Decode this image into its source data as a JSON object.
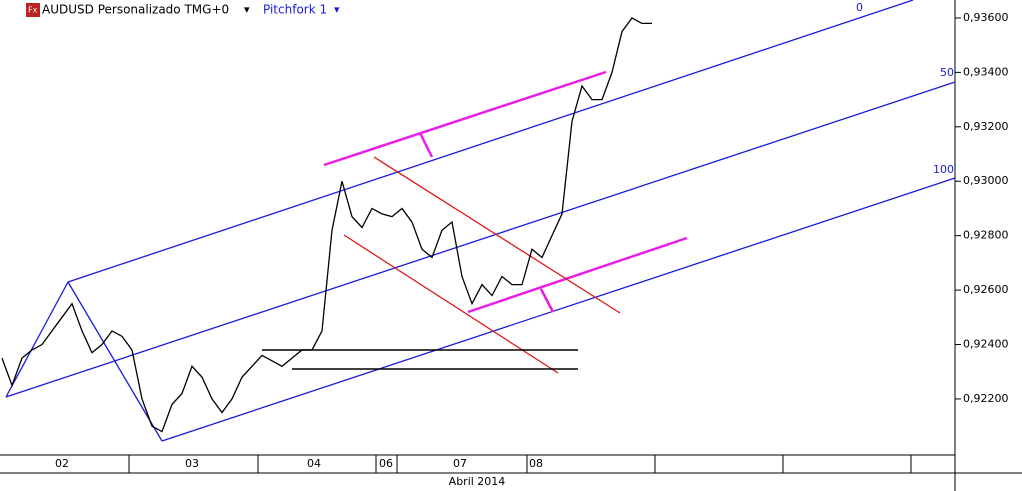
{
  "chart_data": {
    "type": "line",
    "title": "AUDUSD Personalizado TMG+0",
    "indicator": "Pitchfork 1",
    "logo": "Fx",
    "series": [
      {
        "name": "AUDUSD",
        "color": "#000000",
        "values": [
          0.9235,
          0.9225,
          0.9235,
          0.9238,
          0.924,
          0.9245,
          0.925,
          0.9255,
          0.9245,
          0.9237,
          0.924,
          0.9245,
          0.9243,
          0.9238,
          0.922,
          0.921,
          0.9208,
          0.9218,
          0.9222,
          0.9232,
          0.9228,
          0.922,
          0.9215,
          0.922,
          0.9228,
          0.9232,
          0.9236,
          0.9234,
          0.9232,
          0.9235,
          0.9238,
          0.9238,
          0.9245,
          0.9282,
          0.93,
          0.9287,
          0.9283,
          0.929,
          0.9288,
          0.9287,
          0.929,
          0.9285,
          0.9275,
          0.9272,
          0.9282,
          0.9285,
          0.9265,
          0.9255,
          0.9262,
          0.9258,
          0.9265,
          0.9262,
          0.9262,
          0.9275,
          0.9272,
          0.928,
          0.9288,
          0.9322,
          0.9335,
          0.933,
          0.933,
          0.934,
          0.9355,
          0.936,
          0.9358,
          0.9358
        ]
      }
    ],
    "ylim": [
      0.91994,
      0.93666
    ],
    "yticks": [
      {
        "value": 0.936,
        "label": "0,93600"
      },
      {
        "value": 0.934,
        "label": "0,93400"
      },
      {
        "value": 0.932,
        "label": "0,93200"
      },
      {
        "value": 0.93,
        "label": "0,93000"
      },
      {
        "value": 0.928,
        "label": "0,92800"
      },
      {
        "value": 0.926,
        "label": "0,92600"
      },
      {
        "value": 0.924,
        "label": "0,92400"
      },
      {
        "value": 0.922,
        "label": "0,92200"
      }
    ],
    "day_labels": [
      "02",
      "03",
      "04",
      "06",
      "07",
      "08"
    ],
    "period_label": "Abril 2014",
    "pitchfork_levels": [
      "0",
      "50",
      "100"
    ]
  }
}
